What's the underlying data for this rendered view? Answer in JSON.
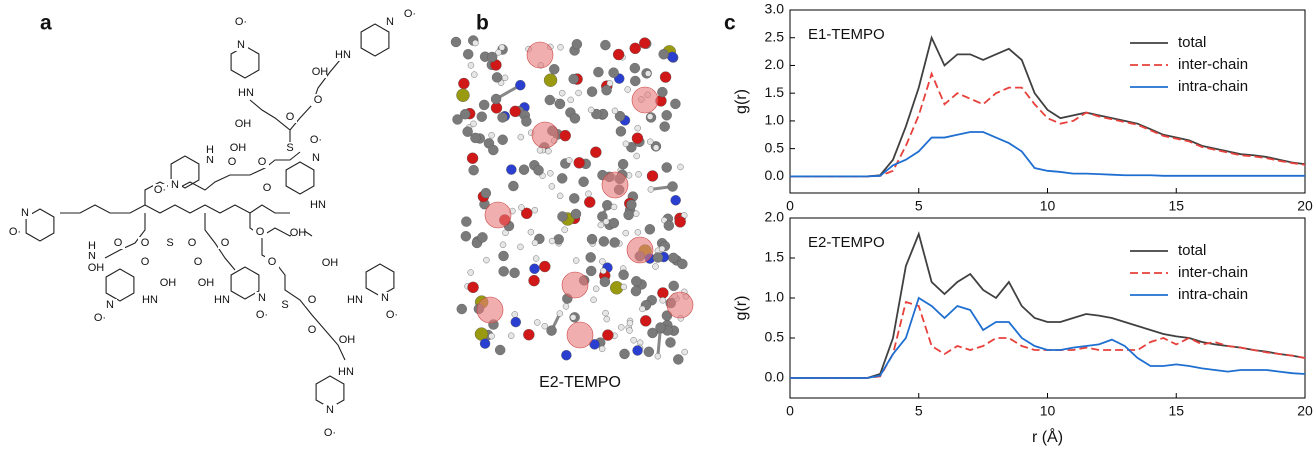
{
  "panel_a": {
    "label": "a",
    "atoms": [
      "N",
      "O·",
      "N",
      "O·",
      "HN",
      "OH",
      "O",
      "HN",
      "OH",
      "O",
      "S",
      "N",
      "O·",
      "N",
      "H",
      "OH",
      "O",
      "O",
      "N",
      "O·",
      "O",
      "N",
      "O·",
      "HN",
      "N",
      "H",
      "OH",
      "O",
      "O",
      "S",
      "O",
      "O",
      "O",
      "OH",
      "O",
      "O",
      "OH",
      "OH",
      "HN",
      "HN",
      "O",
      "OH",
      "S",
      "HN",
      "O",
      "O",
      "OH",
      "HN",
      "N",
      "O·",
      "N",
      "O·",
      "N",
      "O·",
      "N",
      "O·"
    ]
  },
  "panel_b": {
    "label": "b",
    "caption": "E2-TEMPO"
  },
  "panel_c": {
    "label": "c"
  },
  "chart_data": [
    {
      "type": "line",
      "annotation": "E1-TEMPO",
      "y_label": "g(r)",
      "legend": "upper right",
      "x": [
        0,
        0.5,
        1,
        1.5,
        2,
        2.5,
        3,
        3.5,
        4,
        4.5,
        5,
        5.5,
        6,
        6.5,
        7,
        7.5,
        8,
        8.5,
        9,
        9.5,
        10,
        10.5,
        11,
        11.5,
        12,
        12.5,
        13,
        13.5,
        14,
        14.5,
        15,
        15.5,
        16,
        16.5,
        17,
        17.5,
        18,
        18.5,
        19,
        19.5,
        20
      ],
      "series": [
        {
          "name": "total",
          "color": "#404040",
          "linestyle": "solid",
          "values": [
            0,
            0,
            0,
            0,
            0,
            0,
            0,
            0.02,
            0.3,
            0.9,
            1.6,
            2.5,
            2.0,
            2.2,
            2.2,
            2.1,
            2.2,
            2.3,
            2.1,
            1.5,
            1.2,
            1.05,
            1.1,
            1.15,
            1.1,
            1.05,
            1.0,
            0.95,
            0.85,
            0.75,
            0.7,
            0.65,
            0.55,
            0.5,
            0.45,
            0.4,
            0.38,
            0.35,
            0.3,
            0.25,
            0.22
          ]
        },
        {
          "name": "inter-chain",
          "color": "#e8413c",
          "linestyle": "dashed",
          "values": [
            0,
            0,
            0,
            0,
            0,
            0,
            0,
            0.01,
            0.1,
            0.55,
            1.1,
            1.85,
            1.3,
            1.5,
            1.4,
            1.3,
            1.5,
            1.6,
            1.6,
            1.3,
            1.05,
            0.95,
            1.0,
            1.15,
            1.08,
            1.03,
            0.98,
            0.93,
            0.83,
            0.73,
            0.68,
            0.63,
            0.53,
            0.48,
            0.43,
            0.38,
            0.36,
            0.33,
            0.28,
            0.24,
            0.21
          ]
        },
        {
          "name": "intra-chain",
          "color": "#1f6fd1",
          "linestyle": "solid",
          "values": [
            0,
            0,
            0,
            0,
            0,
            0,
            0,
            0.01,
            0.2,
            0.3,
            0.45,
            0.7,
            0.7,
            0.75,
            0.8,
            0.8,
            0.7,
            0.6,
            0.45,
            0.15,
            0.1,
            0.08,
            0.05,
            0.05,
            0.04,
            0.03,
            0.02,
            0.02,
            0.02,
            0.01,
            0.01,
            0.01,
            0.01,
            0.01,
            0.01,
            0.01,
            0.01,
            0.01,
            0.01,
            0.01,
            0.01
          ]
        }
      ],
      "xlim": [
        0,
        20
      ],
      "xticks": [
        0,
        5,
        10,
        15,
        20
      ],
      "ylim": [
        -0.3,
        3.0
      ],
      "yticks": [
        {
          "value": 0,
          "label": "0.0"
        },
        0.5,
        {
          "value": 1,
          "label": "1.0"
        },
        1.5,
        {
          "value": 2,
          "label": "2.0"
        },
        2.5,
        {
          "value": 3,
          "label": "3.0"
        }
      ]
    },
    {
      "type": "line",
      "annotation": "E2-TEMPO",
      "y_label": "g(r)",
      "x_label": "r (Å)",
      "legend": "upper right",
      "x": [
        0,
        0.5,
        1,
        1.5,
        2,
        2.5,
        3,
        3.5,
        4,
        4.5,
        5,
        5.5,
        6,
        6.5,
        7,
        7.5,
        8,
        8.5,
        9,
        9.5,
        10,
        10.5,
        11,
        11.5,
        12,
        12.5,
        13,
        13.5,
        14,
        14.5,
        15,
        15.5,
        16,
        16.5,
        17,
        17.5,
        18,
        18.5,
        19,
        19.5,
        20
      ],
      "series": [
        {
          "name": "total",
          "color": "#404040",
          "linestyle": "solid",
          "values": [
            0,
            0,
            0,
            0,
            0,
            0,
            0,
            0.05,
            0.5,
            1.4,
            1.8,
            1.2,
            1.05,
            1.2,
            1.3,
            1.1,
            1.0,
            1.2,
            0.9,
            0.75,
            0.7,
            0.7,
            0.75,
            0.8,
            0.78,
            0.75,
            0.7,
            0.65,
            0.6,
            0.55,
            0.52,
            0.5,
            0.45,
            0.42,
            0.4,
            0.38,
            0.35,
            0.33,
            0.3,
            0.28,
            0.25
          ]
        },
        {
          "name": "inter-chain",
          "color": "#e8413c",
          "linestyle": "dashed",
          "values": [
            0,
            0,
            0,
            0,
            0,
            0,
            0,
            0.02,
            0.3,
            0.95,
            0.9,
            0.4,
            0.3,
            0.4,
            0.35,
            0.4,
            0.5,
            0.5,
            0.4,
            0.35,
            0.35,
            0.35,
            0.35,
            0.38,
            0.35,
            0.35,
            0.35,
            0.35,
            0.45,
            0.5,
            0.42,
            0.5,
            0.42,
            0.45,
            0.4,
            0.38,
            0.35,
            0.32,
            0.3,
            0.28,
            0.25
          ]
        },
        {
          "name": "intra-chain",
          "color": "#1f6fd1",
          "linestyle": "solid",
          "values": [
            0,
            0,
            0,
            0,
            0,
            0,
            0,
            0.03,
            0.3,
            0.5,
            1.0,
            0.9,
            0.75,
            0.9,
            0.85,
            0.6,
            0.7,
            0.7,
            0.5,
            0.4,
            0.35,
            0.35,
            0.38,
            0.4,
            0.42,
            0.48,
            0.4,
            0.25,
            0.15,
            0.15,
            0.17,
            0.15,
            0.12,
            0.1,
            0.08,
            0.1,
            0.1,
            0.1,
            0.08,
            0.06,
            0.05
          ]
        }
      ],
      "xlim": [
        0,
        20
      ],
      "xticks": [
        0,
        5,
        10,
        15,
        20
      ],
      "ylim": [
        -0.25,
        2.0
      ],
      "yticks": [
        {
          "value": 0,
          "label": "0.0"
        },
        0.5,
        {
          "value": 1,
          "label": "1.0"
        },
        1.5,
        {
          "value": 2,
          "label": "2.0"
        }
      ]
    }
  ]
}
